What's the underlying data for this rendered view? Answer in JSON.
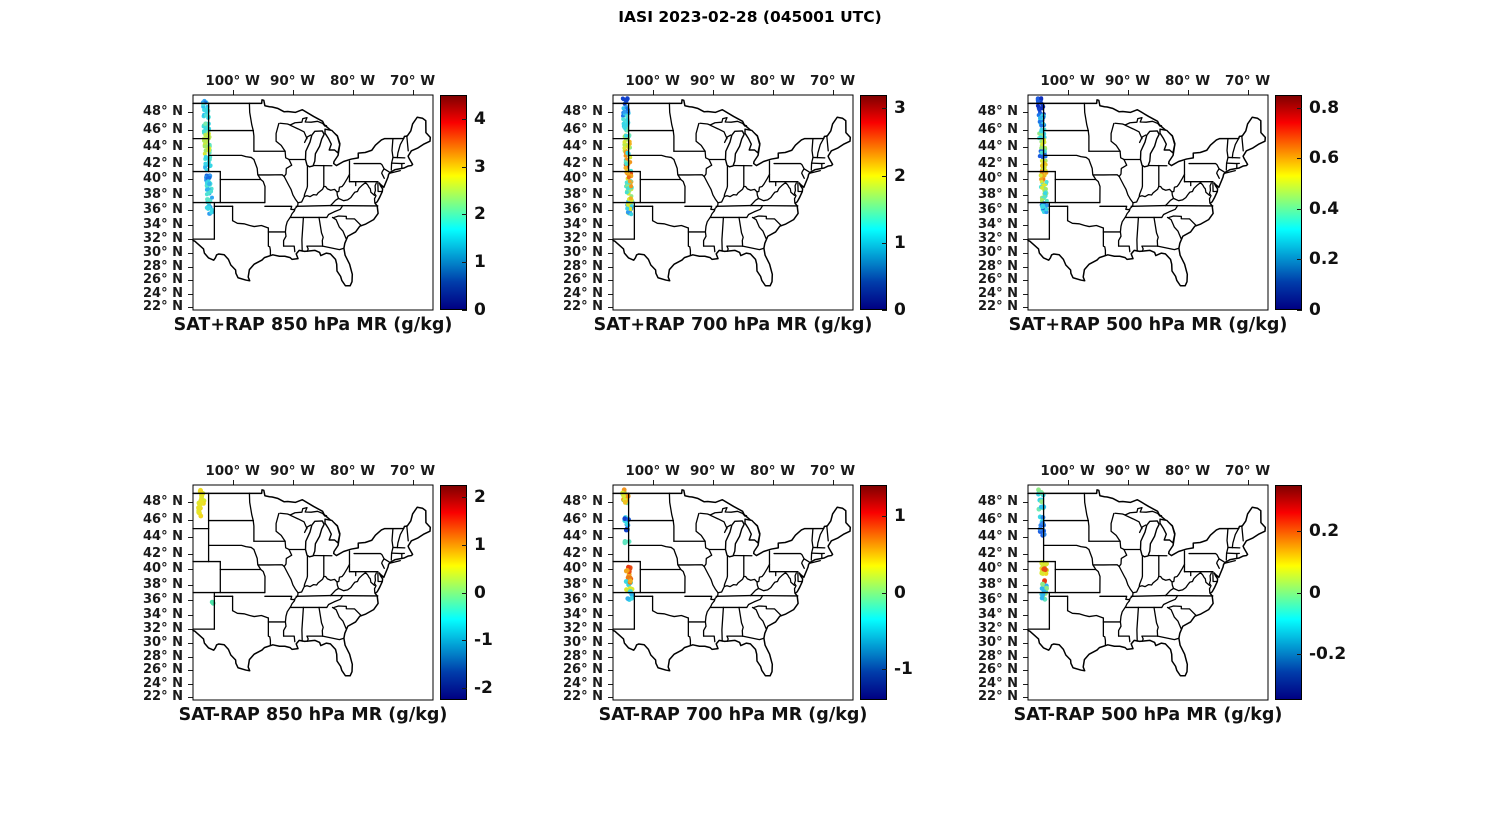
{
  "figure": {
    "title": "IASI 2023-02-28 (045001 UTC)",
    "background": "#ffffff"
  },
  "chart_data": {
    "type": "scatter",
    "figure_title": "IASI 2023-02-28 (045001 UTC)",
    "layout": "2 rows x 3 columns of identical US maps with vertical jet colorbars",
    "map_extent": {
      "lon_min": -106.6,
      "lon_max": -66.6,
      "lat_min": 21.5,
      "lat_max": 49.9
    },
    "grid": "off",
    "lon_ticks": [
      {
        "lon": -100,
        "label": "100° W"
      },
      {
        "lon": -90,
        "label": "90° W"
      },
      {
        "lon": -80,
        "label": "80° W"
      },
      {
        "lon": -70,
        "label": "70° W"
      }
    ],
    "lat_ticks": [
      {
        "lat": 48,
        "label": "48° N"
      },
      {
        "lat": 46,
        "label": "46° N"
      },
      {
        "lat": 44,
        "label": "44° N"
      },
      {
        "lat": 42,
        "label": "42° N"
      },
      {
        "lat": 40,
        "label": "40° N"
      },
      {
        "lat": 38,
        "label": "38° N"
      },
      {
        "lat": 36,
        "label": "36° N"
      },
      {
        "lat": 34,
        "label": "34° N"
      },
      {
        "lat": 32,
        "label": "32° N"
      },
      {
        "lat": 30,
        "label": "30° N"
      },
      {
        "lat": 28,
        "label": "28° N"
      },
      {
        "lat": 26,
        "label": "26° N"
      },
      {
        "lat": 24,
        "label": "24° N"
      },
      {
        "lat": 22,
        "label": "22° N"
      }
    ],
    "colormap": {
      "name": "jet",
      "stops": [
        {
          "color": "#000083",
          "pos": 0.0
        },
        {
          "color": "#003caa",
          "pos": 0.125
        },
        {
          "color": "#05ffff",
          "pos": 0.375
        },
        {
          "color": "#ffff00",
          "pos": 0.625
        },
        {
          "color": "#fa0000",
          "pos": 0.875
        },
        {
          "color": "#800000",
          "pos": 1.0
        }
      ]
    },
    "swath_note": "IASI overpass swath of retrieved mixing-ratio points near 104° W spanning ~35.5-49.5° N",
    "panels": [
      {
        "id": "sat_plus_rap_850",
        "row": 0,
        "col": 0,
        "title": "SAT+RAP 850 hPa MR (g/kg)",
        "colorbar": {
          "min": 0,
          "max": 4.5,
          "tick_values": [
            0,
            1,
            2,
            3,
            4
          ],
          "tick_labels": [
            "0",
            "1",
            "2",
            "3",
            "4"
          ]
        },
        "dot_radius": 2.0,
        "swath": [
          {
            "lat0": 49.0,
            "lat1": 49.6,
            "colors": [
              "#2fa7f2",
              "#1b74e8",
              "#39d7e6"
            ]
          },
          {
            "lat0": 47.3,
            "lat1": 49.0,
            "colors": [
              "#39d7e6",
              "#2fc3f0",
              "#51e3d8"
            ]
          },
          {
            "lat0": 45.6,
            "lat1": 47.3,
            "colors": [
              "#45dfd0",
              "#39d7e6",
              "#7deba8"
            ]
          },
          {
            "lat0": 44.3,
            "lat1": 45.6,
            "colors": [
              "#b9ea4e",
              "#d9e831",
              "#8fe986"
            ]
          },
          {
            "lat0": 43.0,
            "lat1": 44.3,
            "colors": [
              "#d9e831",
              "#a5e962",
              "#5fe6c0"
            ]
          },
          {
            "lat0": 41.3,
            "lat1": 43.0,
            "colors": [
              "#39d7e6",
              "#2fb4ee",
              "#4fe2d4"
            ]
          },
          {
            "lat0": 39.6,
            "lat1": 41.3,
            "colors": [
              "#2f9bf0",
              "#1b6ce4",
              "#39d7e6",
              "#45dfd0"
            ]
          },
          {
            "lat0": 37.8,
            "lat1": 39.6,
            "colors": [
              "#39d7e6",
              "#4fe2d4",
              "#2fb4ee"
            ]
          },
          {
            "lat0": 36.4,
            "lat1": 37.8,
            "colors": [
              "#39d7e6",
              "#5be5c8",
              "#2fa7f2"
            ]
          },
          {
            "lat0": 35.4,
            "lat1": 36.4,
            "colors": [
              "#39d7e6",
              "#2f9bf0"
            ]
          }
        ]
      },
      {
        "id": "sat_plus_rap_700",
        "row": 0,
        "col": 1,
        "title": "SAT+RAP 700 hPa MR (g/kg)",
        "colorbar": {
          "min": 0,
          "max": 3.2,
          "tick_values": [
            0,
            1,
            2,
            3
          ],
          "tick_labels": [
            "0",
            "1",
            "2",
            "3"
          ]
        },
        "dot_radius": 2.0,
        "swath": [
          {
            "lat0": 48.8,
            "lat1": 49.6,
            "colors": [
              "#1040cc",
              "#1b5ce0"
            ]
          },
          {
            "lat0": 47.6,
            "lat1": 48.8,
            "colors": [
              "#1b74e8",
              "#2f9bf0",
              "#2fc3f0"
            ]
          },
          {
            "lat0": 46.2,
            "lat1": 47.6,
            "colors": [
              "#39d7e6",
              "#2fc3f0",
              "#51e3d8"
            ]
          },
          {
            "lat0": 44.8,
            "lat1": 46.2,
            "colors": [
              "#6ee8b4",
              "#a5e962",
              "#39d7e6"
            ]
          },
          {
            "lat0": 43.4,
            "lat1": 44.8,
            "colors": [
              "#d9e831",
              "#b9ea4e",
              "#f2b01e",
              "#8fe986"
            ]
          },
          {
            "lat0": 42.0,
            "lat1": 43.4,
            "colors": [
              "#d9e831",
              "#f2941c",
              "#6ee8b4",
              "#39d7e6"
            ]
          },
          {
            "lat0": 40.6,
            "lat1": 42.0,
            "colors": [
              "#f2b01e",
              "#d9e831",
              "#e84e12",
              "#45dfd0"
            ]
          },
          {
            "lat0": 39.2,
            "lat1": 40.6,
            "colors": [
              "#ec6a14",
              "#f2a51c",
              "#d9e831",
              "#4fe2d4"
            ]
          },
          {
            "lat0": 37.8,
            "lat1": 39.2,
            "colors": [
              "#d9e831",
              "#45dfd0",
              "#f2941c",
              "#8fe986"
            ]
          },
          {
            "lat0": 36.4,
            "lat1": 37.8,
            "colors": [
              "#d9e831",
              "#f2b01e",
              "#39d7e6",
              "#2fb4ee"
            ]
          },
          {
            "lat0": 35.4,
            "lat1": 36.4,
            "colors": [
              "#2f9bf0",
              "#39d7e6",
              "#d9e831"
            ]
          }
        ]
      },
      {
        "id": "sat_plus_rap_500",
        "row": 0,
        "col": 2,
        "title": "SAT+RAP 500 hPa MR (g/kg)",
        "colorbar": {
          "min": 0,
          "max": 0.85,
          "tick_values": [
            0,
            0.2,
            0.4,
            0.6,
            0.8
          ],
          "tick_labels": [
            "0",
            "0.2",
            "0.4",
            "0.6",
            "0.8"
          ]
        },
        "dot_radius": 2.0,
        "swath": [
          {
            "lat0": 47.8,
            "lat1": 49.6,
            "colors": [
              "#0f2fbf",
              "#1040cc",
              "#1b5ce0"
            ]
          },
          {
            "lat0": 46.2,
            "lat1": 47.8,
            "colors": [
              "#1b74e8",
              "#2fb4ee",
              "#39d7e6"
            ]
          },
          {
            "lat0": 44.9,
            "lat1": 46.2,
            "colors": [
              "#51e3d8",
              "#8fe986",
              "#39d7e6"
            ]
          },
          {
            "lat0": 43.6,
            "lat1": 44.9,
            "colors": [
              "#c5ea40",
              "#d9e831",
              "#9ae973"
            ]
          },
          {
            "lat0": 42.4,
            "lat1": 43.6,
            "colors": [
              "#1b74e8",
              "#1b5ce0",
              "#45dfd0"
            ]
          },
          {
            "lat0": 41.0,
            "lat1": 42.4,
            "colors": [
              "#d9e831",
              "#e8c51e",
              "#a5e962"
            ]
          },
          {
            "lat0": 39.7,
            "lat1": 41.0,
            "colors": [
              "#f2a51c",
              "#ec7a16",
              "#d9e831"
            ]
          },
          {
            "lat0": 38.4,
            "lat1": 39.7,
            "colors": [
              "#a5e962",
              "#d9e831",
              "#51e3d8"
            ]
          },
          {
            "lat0": 37.0,
            "lat1": 38.4,
            "colors": [
              "#39d7e6",
              "#5be5c8",
              "#a5e962"
            ]
          },
          {
            "lat0": 35.4,
            "lat1": 37.0,
            "colors": [
              "#2f9bf0",
              "#39d7e6",
              "#1b6ce4"
            ]
          }
        ]
      },
      {
        "id": "sat_minus_rap_850",
        "row": 1,
        "col": 0,
        "title": "SAT-RAP 850 hPa MR (g/kg)",
        "colorbar": {
          "min": -2.25,
          "max": 2.25,
          "tick_values": [
            -2,
            -1,
            0,
            1,
            2
          ],
          "tick_labels": [
            "-2",
            "-1",
            "0",
            "1",
            "2"
          ]
        },
        "dot_radius": 2.4,
        "swath": [
          {
            "lat0": 46.4,
            "lat1": 49.4,
            "lonC": -105.25,
            "w": 1.0,
            "n": 26,
            "colors": [
              "#e8e426",
              "#f2d71e",
              "#d9e831"
            ]
          },
          {
            "lat0": 35.5,
            "lat1": 35.8,
            "lonC": -103.35,
            "w": 0.25,
            "n": 2,
            "colors": [
              "#4de3a8"
            ]
          }
        ]
      },
      {
        "id": "sat_minus_rap_700",
        "row": 1,
        "col": 1,
        "title": "SAT-RAP 700 hPa MR (g/kg)",
        "colorbar": {
          "min": -1.4,
          "max": 1.4,
          "tick_values": [
            -1,
            0,
            1
          ],
          "tick_labels": [
            "-1",
            "0",
            "1"
          ]
        },
        "dot_radius": 2.4,
        "swath": [
          {
            "lat0": 47.9,
            "lat1": 49.4,
            "n": 16,
            "colors": [
              "#f2c01e",
              "#a5e962",
              "#f2941c",
              "#6ee8b4",
              "#d9e831"
            ]
          },
          {
            "lat0": 44.6,
            "lat1": 46.5,
            "lonC": -104.35,
            "w": 0.9,
            "n": 13,
            "colors": [
              "#1b5ce0",
              "#39d7e6",
              "#2f9bf0",
              "#1040cc"
            ]
          },
          {
            "lat0": 43.2,
            "lat1": 43.7,
            "n": 3,
            "colors": [
              "#5fe6c0"
            ]
          },
          {
            "lat0": 38.7,
            "lat1": 40.3,
            "lonC": -103.95,
            "w": 0.9,
            "n": 12,
            "colors": [
              "#e84e12",
              "#ec7a16",
              "#f2a51c",
              "#e8380e"
            ]
          },
          {
            "lat0": 37.0,
            "lat1": 38.7,
            "n": 12,
            "colors": [
              "#f2b01e",
              "#d9e831",
              "#39d7e6",
              "#ec7a16",
              "#8fe986"
            ]
          },
          {
            "lat0": 36.0,
            "lat1": 37.0,
            "n": 5,
            "colors": [
              "#39d7e6",
              "#2fb4ee"
            ]
          }
        ]
      },
      {
        "id": "sat_minus_rap_500",
        "row": 1,
        "col": 2,
        "title": "SAT-RAP 500 hPa MR (g/kg)",
        "colorbar": {
          "min": -0.35,
          "max": 0.35,
          "tick_values": [
            -0.2,
            0,
            0.2
          ],
          "tick_labels": [
            "-0.2",
            "0",
            "0.2"
          ]
        },
        "dot_radius": 2.4,
        "swath": [
          {
            "lat0": 47.2,
            "lat1": 49.4,
            "n": 18,
            "colors": [
              "#6ee8b4",
              "#39d7e6",
              "#8fe986",
              "#2fc3f0"
            ]
          },
          {
            "lat0": 44.2,
            "lat1": 46.7,
            "lonC": -104.35,
            "w": 0.9,
            "n": 14,
            "colors": [
              "#1b5ce0",
              "#2f86ec",
              "#39d7e6",
              "#1040cc"
            ]
          },
          {
            "lat0": 39.4,
            "lat1": 40.9,
            "lonC": -103.95,
            "w": 0.9,
            "n": 14,
            "colors": [
              "#e8e426",
              "#f2d71e",
              "#d9e831"
            ]
          },
          {
            "lat0": 39.9,
            "lat1": 40.15,
            "lonC": -103.9,
            "w": 0.5,
            "n": 3,
            "colors": [
              "#e84e12"
            ]
          },
          {
            "lat0": 38.4,
            "lat1": 38.65,
            "lonC": -103.9,
            "w": 0.3,
            "n": 2,
            "colors": [
              "#e8380e"
            ]
          },
          {
            "lat0": 36.1,
            "lat1": 38.3,
            "n": 15,
            "colors": [
              "#5fe6c0",
              "#39d7e6",
              "#8fe986",
              "#2fb4ee"
            ]
          }
        ]
      }
    ]
  }
}
